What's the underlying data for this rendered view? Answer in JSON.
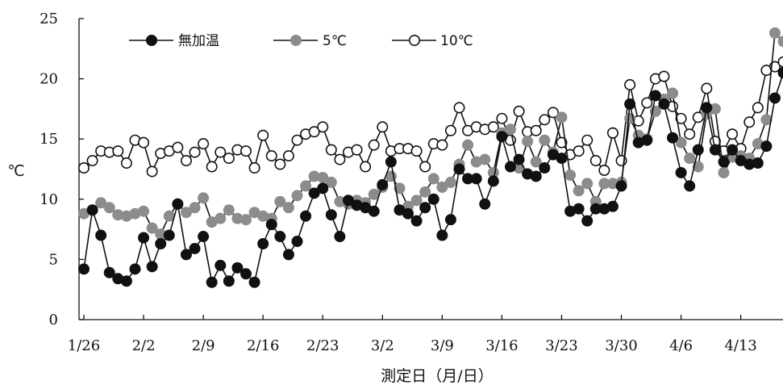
{
  "chart_data": {
    "type": "line",
    "xlabel": "測定日（月/日）",
    "ylabel": "℃",
    "ylim": [
      0,
      25
    ],
    "yticks": [
      0,
      5,
      10,
      15,
      20,
      25
    ],
    "x_start": "1/26",
    "x_end": "4/18",
    "xticks": [
      "1/26",
      "2/2",
      "2/9",
      "2/16",
      "2/23",
      "3/2",
      "3/9",
      "3/16",
      "3/23",
      "3/30",
      "4/6",
      "4/13"
    ],
    "grid": false,
    "legend_position": "top-left",
    "series": [
      {
        "name": "無加温",
        "marker": "filled-black-circle",
        "color": "#111111",
        "values": [
          4.2,
          9.1,
          7.0,
          3.9,
          3.4,
          3.2,
          4.2,
          6.8,
          4.4,
          6.3,
          7.0,
          9.6,
          5.4,
          5.9,
          6.9,
          3.1,
          4.5,
          3.2,
          4.3,
          3.8,
          3.1,
          6.3,
          7.9,
          6.9,
          5.4,
          6.5,
          8.6,
          10.5,
          10.9,
          8.7,
          6.9,
          9.9,
          9.5,
          9.3,
          9.0,
          11.2,
          13.1,
          9.1,
          8.8,
          8.2,
          9.3,
          10.0,
          7.0,
          8.3,
          12.5,
          11.7,
          11.7,
          9.6,
          11.5,
          15.2,
          12.7,
          13.3,
          12.1,
          11.9,
          12.6,
          13.7,
          13.4,
          9.0,
          9.2,
          8.2,
          9.2,
          9.2,
          9.4,
          11.1,
          17.9,
          14.7,
          14.9,
          18.6,
          17.9,
          15.1,
          12.2,
          11.1,
          14.1,
          17.6,
          14.1,
          13.1,
          14.1,
          13.2,
          12.9,
          13.0,
          14.4,
          18.4,
          20.5,
          20.6
        ]
      },
      {
        "name": "5℃",
        "marker": "filled-gray-circle",
        "color": "#8c8c8c",
        "values": [
          8.8,
          9.1,
          9.7,
          9.3,
          8.7,
          8.6,
          8.8,
          9.0,
          7.6,
          7.1,
          8.6,
          9.6,
          8.9,
          9.3,
          10.1,
          8.1,
          8.4,
          9.1,
          8.4,
          8.3,
          8.9,
          8.6,
          8.4,
          9.8,
          9.3,
          10.3,
          11.1,
          11.9,
          11.8,
          11.4,
          9.8,
          9.6,
          9.9,
          9.7,
          10.4,
          11.0,
          11.9,
          10.9,
          9.4,
          9.9,
          10.6,
          11.7,
          11.0,
          11.4,
          12.9,
          14.5,
          13.1,
          13.3,
          12.2,
          15.5,
          15.8,
          12.6,
          14.8,
          13.1,
          14.9,
          13.9,
          16.8,
          12.0,
          10.7,
          11.3,
          9.8,
          11.3,
          11.3,
          11.4,
          16.7,
          15.3,
          15.0,
          17.3,
          18.3,
          18.8,
          14.7,
          13.4,
          12.7,
          17.1,
          17.5,
          12.2,
          13.5,
          13.6,
          13.4,
          14.6,
          16.6,
          23.8,
          23.1,
          23.4
        ]
      },
      {
        "name": "10℃",
        "marker": "open-circle",
        "color": "#ffffff",
        "values": [
          12.6,
          13.2,
          14.0,
          13.9,
          14.0,
          13.0,
          14.9,
          14.7,
          12.3,
          13.8,
          14.0,
          14.3,
          13.2,
          13.9,
          14.6,
          12.7,
          13.9,
          13.4,
          14.1,
          14.0,
          12.6,
          15.3,
          13.6,
          12.9,
          13.6,
          14.9,
          15.4,
          15.6,
          16.0,
          14.1,
          13.3,
          13.9,
          14.1,
          12.7,
          14.5,
          16.0,
          14.0,
          14.2,
          14.2,
          14.0,
          12.7,
          14.6,
          14.5,
          15.7,
          17.6,
          15.7,
          16.0,
          15.8,
          16.0,
          16.7,
          14.9,
          17.3,
          15.6,
          15.7,
          16.6,
          17.2,
          14.7,
          13.7,
          14.0,
          14.9,
          13.2,
          12.4,
          15.5,
          13.2,
          19.5,
          16.5,
          18.0,
          20.0,
          20.2,
          17.7,
          16.7,
          15.4,
          16.8,
          19.2,
          14.8,
          14.0,
          15.4,
          14.2,
          16.4,
          17.6,
          20.7,
          21.0,
          21.4,
          21.7
        ]
      }
    ]
  }
}
